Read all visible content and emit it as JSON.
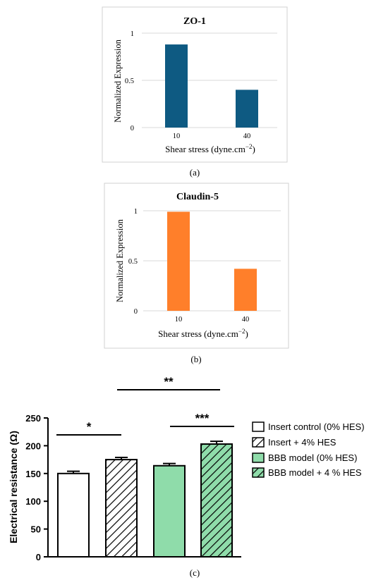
{
  "chart_data": [
    {
      "type": "bar",
      "title": "ZO-1",
      "xlabel": "Shear stress (dyne.cm",
      "xlabel_sup": "−2",
      "xlabel_close": ")",
      "ylabel": "Normalized Expression",
      "categories": [
        "10",
        "40"
      ],
      "values": [
        0.88,
        0.4
      ],
      "ylim": [
        0,
        1
      ],
      "yticks": [
        {
          "value": 0,
          "label": "0"
        },
        {
          "value": 0.5,
          "label": "0.5"
        },
        {
          "value": 1,
          "label": "1"
        }
      ],
      "grid": true,
      "color": "#0e5a82",
      "caption": "(a)"
    },
    {
      "type": "bar",
      "title": "Claudin-5",
      "xlabel": "Shear stress (dyne.cm",
      "xlabel_sup": "−2",
      "xlabel_close": ")",
      "ylabel": "Normalized Expression",
      "categories": [
        "10",
        "40"
      ],
      "values": [
        0.99,
        0.42
      ],
      "ylim": [
        0,
        1
      ],
      "yticks": [
        {
          "value": 0,
          "label": "0"
        },
        {
          "value": 0.5,
          "label": "0.5"
        },
        {
          "value": 1,
          "label": "1"
        }
      ],
      "grid": true,
      "color": "#ff7f2a",
      "caption": "(b)"
    },
    {
      "type": "bar",
      "ylabel": "Electrical resistance (Ω)",
      "categories": [
        "Insert control (0% HES)",
        "Insert + 4% HES",
        "BBB model (0% HES)",
        "BBB model  + 4 % HES"
      ],
      "values": [
        150,
        175,
        164,
        203
      ],
      "errors": [
        4,
        4,
        4,
        5
      ],
      "ylim": [
        0,
        250
      ],
      "yticks": [
        "0",
        "50",
        "100",
        "150",
        "200",
        "250"
      ],
      "series": [
        {
          "name": "Insert control (0% HES)",
          "fill": "#ffffff",
          "hatch": false
        },
        {
          "name": "Insert + 4% HES",
          "fill": "#ffffff",
          "hatch": true
        },
        {
          "name": "BBB model (0% HES)",
          "fill": "#8fdcaa",
          "hatch": false
        },
        {
          "name": "BBB model  + 4 % HES",
          "fill": "#8fdcaa",
          "hatch": true
        }
      ],
      "significance": [
        {
          "from": 0,
          "to": 1,
          "label": "*"
        },
        {
          "from": 2,
          "to": 3,
          "label": "***"
        },
        {
          "from": 1,
          "to": 3,
          "label": "**"
        }
      ],
      "legend": "right",
      "caption": "(c)"
    }
  ]
}
